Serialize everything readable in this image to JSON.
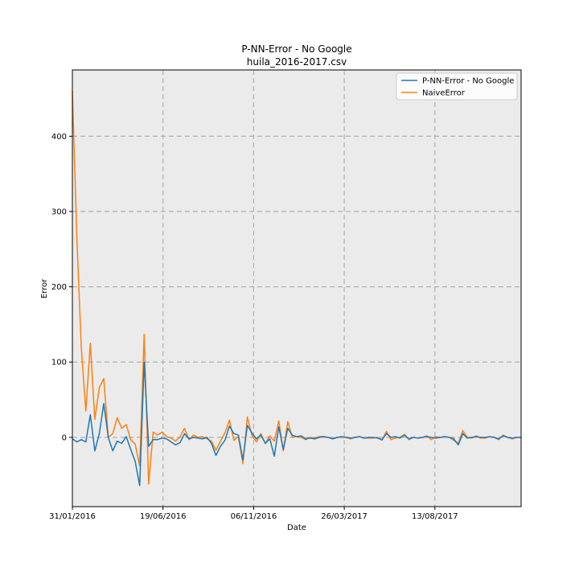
{
  "chart_data": {
    "type": "line",
    "title": "P-NN-Error - No Google",
    "subtitle": "huila_2016-2017.csv",
    "xlabel": "Date",
    "ylabel": "Error",
    "x_tick_labels": [
      "31/01/2016",
      "19/06/2016",
      "06/11/2016",
      "26/03/2017",
      "13/08/2017"
    ],
    "y_ticks": [
      0,
      100,
      200,
      300,
      400
    ],
    "ylim": [
      -92,
      488
    ],
    "grid": true,
    "legend_position": "top-right",
    "colors": {
      "background": "#ebebeb",
      "grid": "#b0b0b0",
      "series_0": "#1f77b4",
      "series_1": "#ff7f0e"
    },
    "series": [
      {
        "name": "P-NN-Error - No Google",
        "values": [
          -2,
          -6,
          -3,
          -6,
          30,
          -18,
          5,
          45,
          0,
          -18,
          -5,
          -8,
          1,
          -16,
          -32,
          -64,
          100,
          -12,
          -3,
          -3,
          -1,
          -2,
          -6,
          -10,
          -7,
          5,
          -2,
          0,
          -1,
          -2,
          0,
          -8,
          -24,
          -12,
          -4,
          15,
          5,
          3,
          -30,
          16,
          6,
          -2,
          3,
          -8,
          -2,
          -25,
          14,
          -16,
          12,
          3,
          1,
          2,
          -2,
          -1,
          -2,
          0,
          1,
          0,
          -2,
          0,
          1,
          0,
          -1,
          0,
          1,
          -1,
          0,
          0,
          -1,
          -3,
          5,
          0,
          1,
          -1,
          3,
          -2,
          0,
          -1,
          0,
          1,
          0,
          -1,
          0,
          1,
          0,
          -2,
          -10,
          5,
          -1,
          0,
          1,
          0,
          0,
          1,
          0,
          -2,
          2,
          0,
          -1,
          0,
          0
        ]
      },
      {
        "name": "NaiveError",
        "values": [
          460,
          265,
          118,
          35,
          125,
          24,
          66,
          78,
          0,
          5,
          26,
          12,
          17,
          -3,
          -9,
          -38,
          137,
          -62,
          7,
          3,
          7,
          1,
          -1,
          -5,
          1,
          12,
          -3,
          3,
          0,
          1,
          -2,
          -5,
          -17,
          -5,
          6,
          23,
          -4,
          1,
          -35,
          27,
          3,
          -6,
          5,
          -8,
          2,
          -5,
          22,
          -18,
          21,
          0,
          1,
          0,
          -3,
          0,
          -1,
          1,
          1,
          0,
          -2,
          0,
          0,
          0,
          -2,
          0,
          1,
          -1,
          -1,
          -1,
          0,
          -4,
          8,
          -3,
          -1,
          0,
          4,
          -3,
          0,
          -1,
          0,
          2,
          -3,
          1,
          0,
          1,
          0,
          -4,
          -8,
          9,
          0,
          -1,
          2,
          -1,
          -1,
          1,
          0,
          -3,
          3,
          0,
          -2,
          0,
          0
        ]
      }
    ]
  }
}
